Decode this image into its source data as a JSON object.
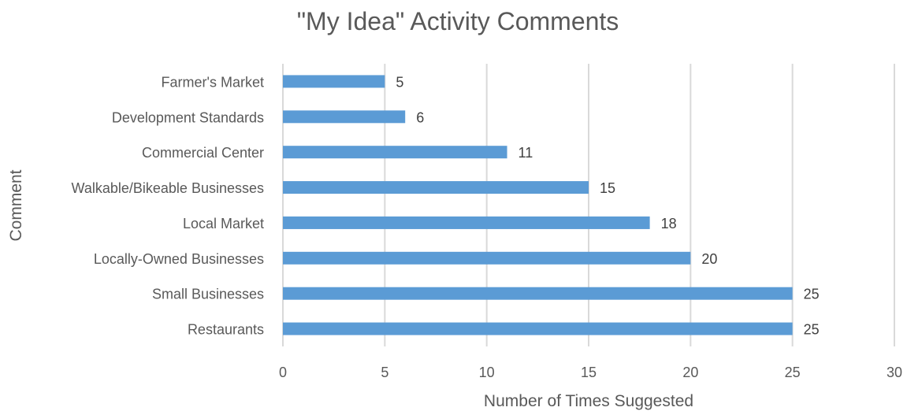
{
  "chart_data": {
    "type": "bar",
    "orientation": "horizontal",
    "title": "\"My Idea\" Activity Comments",
    "xlabel": "Number of Times Suggested",
    "ylabel": "Comment",
    "categories": [
      "Farmer's Market",
      "Development Standards",
      "Commercial Center",
      "Walkable/Bikeable Businesses",
      "Local Market",
      "Locally-Owned Businesses",
      "Small Businesses",
      "Restaurants"
    ],
    "values": [
      5,
      6,
      11,
      15,
      18,
      20,
      25,
      25
    ],
    "xlim": [
      0,
      30
    ],
    "xticks": [
      0,
      5,
      10,
      15,
      20,
      25,
      30
    ],
    "grid": "vertical",
    "legend": "none",
    "bar_color": "#5b9bd5",
    "data_labels": true
  }
}
